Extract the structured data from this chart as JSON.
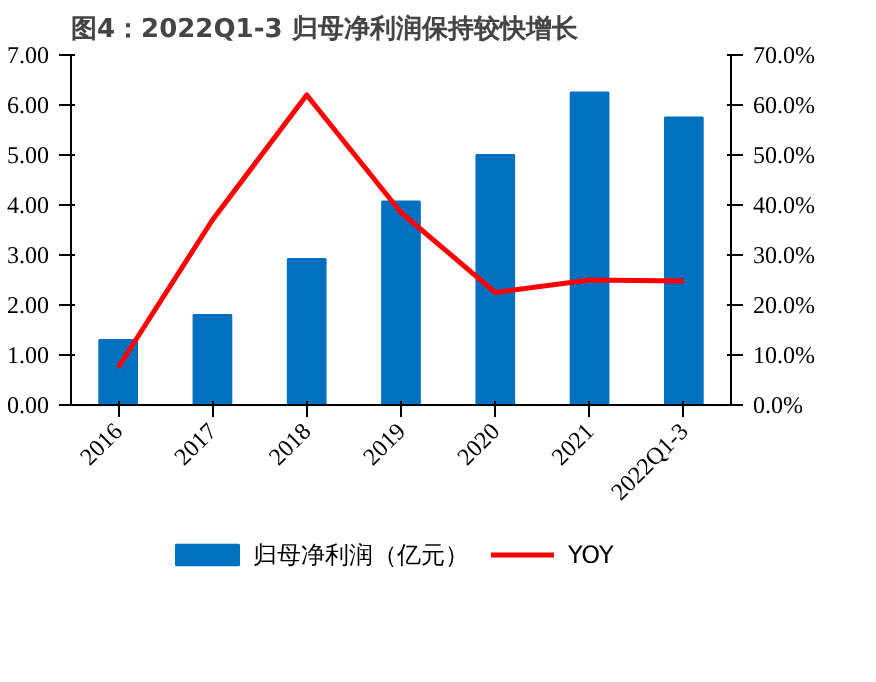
{
  "chart_data": {
    "type": "bar",
    "title": "图4：2022Q1-3 归母净利润保持较快增长",
    "categories": [
      "2016",
      "2017",
      "2018",
      "2019",
      "2020",
      "2021",
      "2022Q1-3"
    ],
    "series": [
      {
        "name": "归母净利润（亿元）",
        "type": "bar",
        "color": "#0070c0",
        "values": [
          1.3,
          1.8,
          2.92,
          4.07,
          5.0,
          6.25,
          5.75
        ]
      },
      {
        "name": "YOY",
        "type": "line",
        "axis": "y2",
        "color": "#ff0000",
        "values": [
          7.5,
          37,
          62,
          38.5,
          22.5,
          25,
          24.8
        ]
      }
    ],
    "ylim": [
      0,
      7
    ],
    "yticks": [
      {
        "value": 0,
        "label": "0.00"
      },
      {
        "value": 1,
        "label": "1.00"
      },
      {
        "value": 2,
        "label": "2.00"
      },
      {
        "value": 3,
        "label": "3.00"
      },
      {
        "value": 4,
        "label": "4.00"
      },
      {
        "value": 5,
        "label": "5.00"
      },
      {
        "value": 6,
        "label": "6.00"
      },
      {
        "value": 7,
        "label": "7.00"
      }
    ],
    "y2lim": [
      0,
      70
    ],
    "y2ticks": [
      {
        "value": 0,
        "label": "0.0%"
      },
      {
        "value": 10,
        "label": "10.0%"
      },
      {
        "value": 20,
        "label": "20.0%"
      },
      {
        "value": 30,
        "label": "30.0%"
      },
      {
        "value": 40,
        "label": "40.0%"
      },
      {
        "value": 50,
        "label": "50.0%"
      },
      {
        "value": 60,
        "label": "60.0%"
      },
      {
        "value": 70,
        "label": "70.0%"
      }
    ],
    "grid": false,
    "legend": "bottom",
    "marker": "none",
    "line_style": "solid"
  }
}
